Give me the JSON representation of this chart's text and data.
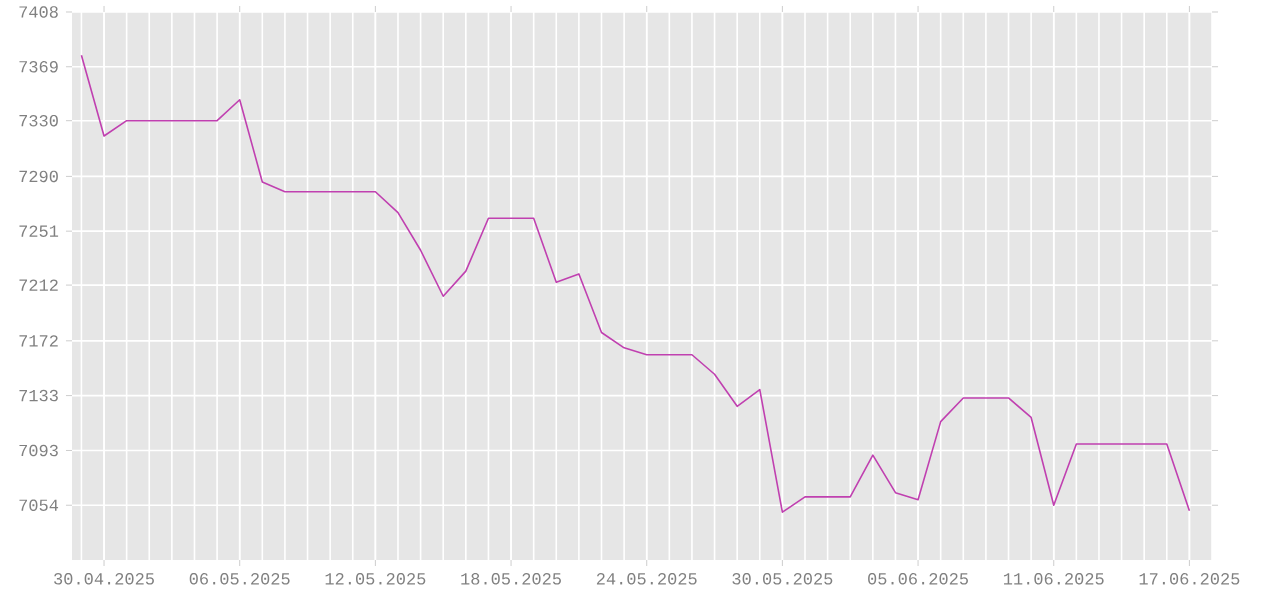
{
  "chart_data": {
    "type": "line",
    "color": "#c040b0",
    "line_style": "solid",
    "grid": true,
    "x": [
      "2025-04-29",
      "2025-04-30",
      "2025-05-01",
      "2025-05-02",
      "2025-05-03",
      "2025-05-04",
      "2025-05-05",
      "2025-05-06",
      "2025-05-07",
      "2025-05-08",
      "2025-05-09",
      "2025-05-10",
      "2025-05-11",
      "2025-05-12",
      "2025-05-13",
      "2025-05-14",
      "2025-05-15",
      "2025-05-16",
      "2025-05-17",
      "2025-05-18",
      "2025-05-19",
      "2025-05-20",
      "2025-05-21",
      "2025-05-22",
      "2025-05-23",
      "2025-05-24",
      "2025-05-25",
      "2025-05-26",
      "2025-05-27",
      "2025-05-28",
      "2025-05-29",
      "2025-05-30",
      "2025-05-31",
      "2025-06-01",
      "2025-06-02",
      "2025-06-03",
      "2025-06-04",
      "2025-06-05",
      "2025-06-06",
      "2025-06-07",
      "2025-06-08",
      "2025-06-09",
      "2025-06-10",
      "2025-06-11",
      "2025-06-12",
      "2025-06-13",
      "2025-06-14",
      "2025-06-15",
      "2025-06-16",
      "2025-06-17"
    ],
    "values": [
      7377,
      7319,
      7330,
      7330,
      7330,
      7330,
      7330,
      7345,
      7286,
      7279,
      7279,
      7279,
      7279,
      7279,
      7264,
      7237,
      7204,
      7222,
      7260,
      7260,
      7260,
      7214,
      7220,
      7178,
      7167,
      7162,
      7162,
      7162,
      7148,
      7125,
      7137,
      7049,
      7060,
      7060,
      7060,
      7090,
      7063,
      7058,
      7114,
      7131,
      7131,
      7131,
      7117,
      7054,
      7098,
      7098,
      7098,
      7098,
      7098,
      7050
    ],
    "xlim": [
      "2025-04-28T14:00",
      "2025-06-18T00:00"
    ],
    "xticks": [
      {
        "value": "2025-04-30",
        "label": "30.04.2025"
      },
      {
        "value": "2025-05-06",
        "label": "06.05.2025"
      },
      {
        "value": "2025-05-12",
        "label": "12.05.2025"
      },
      {
        "value": "2025-05-18",
        "label": "18.05.2025"
      },
      {
        "value": "2025-05-24",
        "label": "24.05.2025"
      },
      {
        "value": "2025-05-30",
        "label": "30.05.2025"
      },
      {
        "value": "2025-06-05",
        "label": "05.06.2025"
      },
      {
        "value": "2025-06-11",
        "label": "11.06.2025"
      },
      {
        "value": "2025-06-17",
        "label": "17.06.2025"
      }
    ],
    "ylim": [
      7014.7,
      7408
    ],
    "yticks": [
      {
        "value": 7054,
        "label": "7054"
      },
      {
        "value": 7093.3,
        "label": "7093"
      },
      {
        "value": 7132.7,
        "label": "7133"
      },
      {
        "value": 7172,
        "label": "7172"
      },
      {
        "value": 7212,
        "label": "7212"
      },
      {
        "value": 7250.7,
        "label": "7251"
      },
      {
        "value": 7290,
        "label": "7290"
      },
      {
        "value": 7330,
        "label": "7330"
      },
      {
        "value": 7368.7,
        "label": "7369"
      },
      {
        "value": 7408,
        "label": "7408"
      }
    ]
  }
}
